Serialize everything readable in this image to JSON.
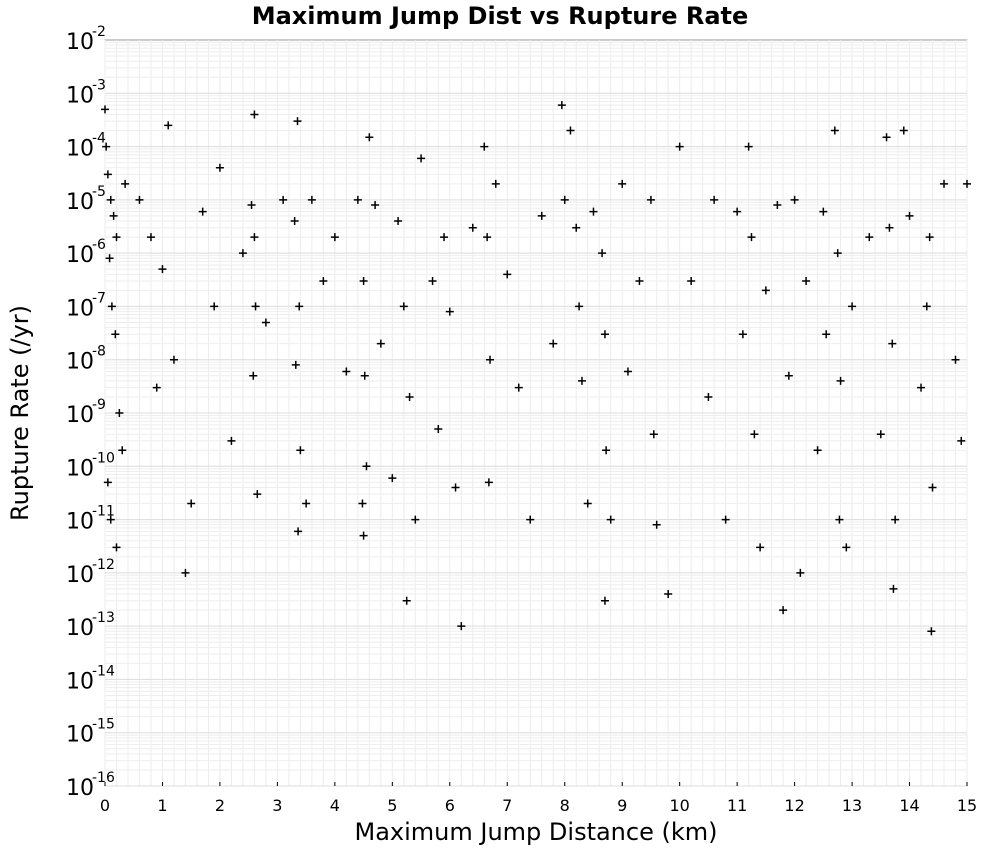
{
  "chart_data": {
    "type": "scatter",
    "title": "Maximum Jump Dist vs Rupture Rate",
    "xlabel": "Maximum Jump Distance (km)",
    "ylabel": "Rupture Rate (/yr)",
    "xlim": [
      0,
      15
    ],
    "ylim": [
      1e-16,
      0.01
    ],
    "yscale": "log",
    "grid": true,
    "marker": "plus",
    "marker_color": "#000000",
    "x_ticks": [
      "0",
      "1",
      "2",
      "3",
      "4",
      "5",
      "6",
      "7",
      "8",
      "9",
      "10",
      "11",
      "12",
      "13",
      "14",
      "15"
    ],
    "y_ticks": [
      {
        "base": "10",
        "exp": "-16"
      },
      {
        "base": "10",
        "exp": "-15"
      },
      {
        "base": "10",
        "exp": "-14"
      },
      {
        "base": "10",
        "exp": "-13"
      },
      {
        "base": "10",
        "exp": "-12"
      },
      {
        "base": "10",
        "exp": "-11"
      },
      {
        "base": "10",
        "exp": "-10"
      },
      {
        "base": "10",
        "exp": "-9"
      },
      {
        "base": "10",
        "exp": "-8"
      },
      {
        "base": "10",
        "exp": "-7"
      },
      {
        "base": "10",
        "exp": "-6"
      },
      {
        "base": "10",
        "exp": "-5"
      },
      {
        "base": "10",
        "exp": "-4"
      },
      {
        "base": "10",
        "exp": "-3"
      },
      {
        "base": "10",
        "exp": "-2"
      }
    ],
    "points": [
      [
        0.0,
        0.0005
      ],
      [
        0.02,
        0.0001
      ],
      [
        0.05,
        3e-05
      ],
      [
        0.1,
        1e-05
      ],
      [
        0.15,
        5e-06
      ],
      [
        0.2,
        2e-06
      ],
      [
        0.08,
        8e-07
      ],
      [
        0.12,
        1e-07
      ],
      [
        0.18,
        3e-08
      ],
      [
        0.25,
        1e-09
      ],
      [
        0.3,
        2e-10
      ],
      [
        0.05,
        5e-11
      ],
      [
        0.1,
        1e-11
      ],
      [
        0.2,
        3e-12
      ],
      [
        0.35,
        2e-05
      ],
      [
        0.6,
        1e-05
      ],
      [
        0.8,
        2e-06
      ],
      [
        1.0,
        5e-07
      ],
      [
        1.2,
        1e-08
      ],
      [
        1.4,
        1e-12
      ],
      [
        1.1,
        0.00025
      ],
      [
        0.9,
        3e-09
      ],
      [
        1.5,
        2e-11
      ],
      [
        1.7,
        6e-06
      ],
      [
        1.9,
        1e-07
      ],
      [
        2.0,
        4e-05
      ],
      [
        2.2,
        3e-10
      ],
      [
        2.4,
        1e-06
      ],
      [
        2.55,
        8e-06
      ],
      [
        2.6,
        2e-06
      ],
      [
        2.62,
        1e-07
      ],
      [
        2.58,
        5e-09
      ],
      [
        2.65,
        3e-11
      ],
      [
        2.6,
        0.0004
      ],
      [
        2.8,
        5e-08
      ],
      [
        3.1,
        1e-05
      ],
      [
        3.3,
        4e-06
      ],
      [
        3.35,
        0.0003
      ],
      [
        3.38,
        1e-07
      ],
      [
        3.32,
        8e-09
      ],
      [
        3.4,
        2e-10
      ],
      [
        3.36,
        6e-12
      ],
      [
        3.5,
        2e-11
      ],
      [
        3.6,
        1e-05
      ],
      [
        3.8,
        3e-07
      ],
      [
        4.0,
        2e-06
      ],
      [
        4.2,
        6e-09
      ],
      [
        4.4,
        1e-05
      ],
      [
        4.5,
        3e-07
      ],
      [
        4.52,
        5e-09
      ],
      [
        4.55,
        1e-10
      ],
      [
        4.48,
        2e-11
      ],
      [
        4.5,
        5e-12
      ],
      [
        4.6,
        0.00015
      ],
      [
        4.7,
        8e-06
      ],
      [
        4.8,
        2e-08
      ],
      [
        5.0,
        6e-11
      ],
      [
        5.1,
        4e-06
      ],
      [
        5.2,
        1e-07
      ],
      [
        5.3,
        2e-09
      ],
      [
        5.25,
        3e-13
      ],
      [
        5.4,
        1e-11
      ],
      [
        5.5,
        6e-05
      ],
      [
        5.7,
        3e-07
      ],
      [
        5.8,
        5e-10
      ],
      [
        5.9,
        2e-06
      ],
      [
        6.0,
        8e-08
      ],
      [
        6.1,
        4e-11
      ],
      [
        6.2,
        1e-13
      ],
      [
        6.4,
        3e-06
      ],
      [
        6.6,
        0.0001
      ],
      [
        6.65,
        2e-06
      ],
      [
        6.7,
        1e-08
      ],
      [
        6.68,
        5e-11
      ],
      [
        6.8,
        2e-05
      ],
      [
        7.0,
        4e-07
      ],
      [
        7.2,
        3e-09
      ],
      [
        7.4,
        1e-11
      ],
      [
        7.6,
        5e-06
      ],
      [
        7.8,
        2e-08
      ],
      [
        7.95,
        0.0006
      ],
      [
        8.0,
        1e-05
      ],
      [
        8.1,
        0.0002
      ],
      [
        8.2,
        3e-06
      ],
      [
        8.25,
        1e-07
      ],
      [
        8.3,
        4e-09
      ],
      [
        8.4,
        2e-11
      ],
      [
        8.5,
        6e-06
      ],
      [
        8.65,
        1e-06
      ],
      [
        8.7,
        3e-08
      ],
      [
        8.72,
        2e-10
      ],
      [
        8.7,
        3e-13
      ],
      [
        8.8,
        1e-11
      ],
      [
        9.0,
        2e-05
      ],
      [
        9.1,
        6e-09
      ],
      [
        9.3,
        3e-07
      ],
      [
        9.5,
        1e-05
      ],
      [
        9.55,
        4e-10
      ],
      [
        9.6,
        8e-12
      ],
      [
        9.8,
        4e-13
      ],
      [
        10.0,
        0.0001
      ],
      [
        10.2,
        3e-07
      ],
      [
        10.5,
        2e-09
      ],
      [
        10.6,
        1e-05
      ],
      [
        10.8,
        1e-11
      ],
      [
        11.0,
        6e-06
      ],
      [
        11.1,
        3e-08
      ],
      [
        11.2,
        0.0001
      ],
      [
        11.25,
        2e-06
      ],
      [
        11.3,
        4e-10
      ],
      [
        11.4,
        3e-12
      ],
      [
        11.5,
        2e-07
      ],
      [
        11.7,
        8e-06
      ],
      [
        11.8,
        2e-13
      ],
      [
        11.9,
        5e-09
      ],
      [
        12.0,
        1e-05
      ],
      [
        12.1,
        1e-12
      ],
      [
        12.2,
        3e-07
      ],
      [
        12.4,
        2e-10
      ],
      [
        12.5,
        6e-06
      ],
      [
        12.55,
        3e-08
      ],
      [
        12.7,
        0.0002
      ],
      [
        12.75,
        1e-06
      ],
      [
        12.8,
        4e-09
      ],
      [
        12.78,
        1e-11
      ],
      [
        12.9,
        3e-12
      ],
      [
        13.0,
        1e-07
      ],
      [
        13.3,
        2e-06
      ],
      [
        13.5,
        4e-10
      ],
      [
        13.6,
        0.00015
      ],
      [
        13.65,
        3e-06
      ],
      [
        13.7,
        2e-08
      ],
      [
        13.72,
        5e-13
      ],
      [
        13.75,
        1e-11
      ],
      [
        13.9,
        0.0002
      ],
      [
        14.0,
        5e-06
      ],
      [
        14.2,
        3e-09
      ],
      [
        14.3,
        1e-07
      ],
      [
        14.35,
        2e-06
      ],
      [
        14.38,
        8e-14
      ],
      [
        14.4,
        4e-11
      ],
      [
        14.6,
        2e-05
      ],
      [
        14.8,
        1e-08
      ],
      [
        14.9,
        3e-10
      ],
      [
        15.0,
        2e-05
      ]
    ]
  }
}
